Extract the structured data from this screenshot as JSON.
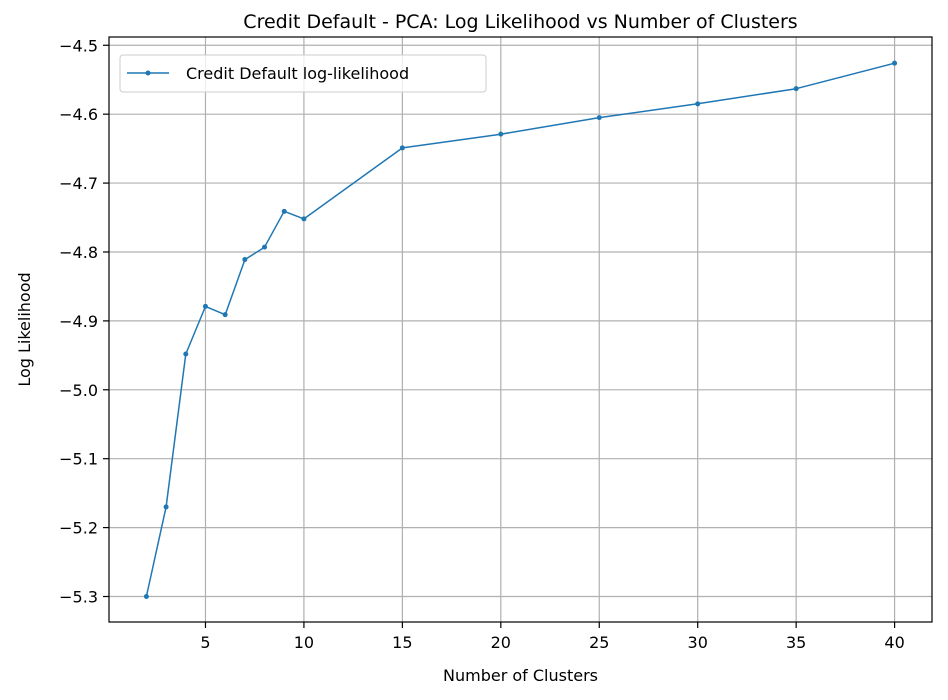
{
  "chart_data": {
    "type": "line",
    "title": "Credit Default - PCA: Log Likelihood vs Number of Clusters",
    "xlabel": "Number of Clusters",
    "ylabel": "Log Likelihood",
    "xlim": [
      0.1,
      41.9
    ],
    "ylim": [
      -5.337,
      -4.488
    ],
    "xticks": [
      5,
      10,
      15,
      20,
      25,
      30,
      35,
      40
    ],
    "yticks": [
      -5.3,
      -5.2,
      -5.1,
      -5.0,
      -4.9,
      -4.8,
      -4.7,
      -4.6,
      -4.5
    ],
    "grid": true,
    "legend_position": "top-left",
    "series": [
      {
        "name": "Credit Default log-likelihood",
        "color": "#1f77b4",
        "x": [
          2,
          3,
          4,
          5,
          6,
          7,
          8,
          9,
          10,
          15,
          20,
          25,
          30,
          35,
          40
        ],
        "y": [
          -5.3,
          -5.17,
          -4.948,
          -4.879,
          -4.891,
          -4.811,
          -4.793,
          -4.741,
          -4.752,
          -4.649,
          -4.629,
          -4.605,
          -4.585,
          -4.563,
          -4.526
        ]
      }
    ]
  }
}
